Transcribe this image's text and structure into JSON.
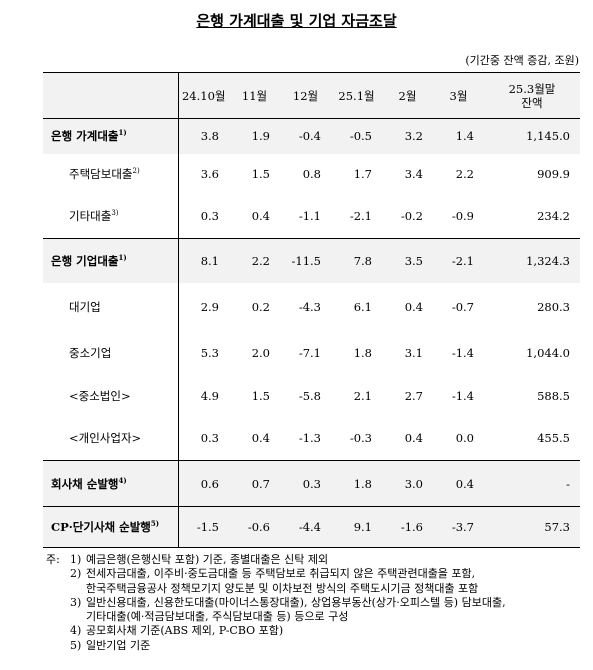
{
  "title": "은행 가계대출 및 기업 자금조달",
  "unit": "(기간중 잔액 증감, 조원)",
  "table": {
    "header": [
      "24.10월",
      "11월",
      "12월",
      "25.1월",
      "2월",
      "3월",
      [
        "25.3월말",
        "잔액"
      ]
    ],
    "groups": [
      {
        "total": {
          "label": "은행 가계대출",
          "note": "1)",
          "values": [
            "3.8",
            "1.9",
            "-0.4",
            "-0.5",
            "3.2",
            "1.4",
            "1,145.0"
          ]
        },
        "items": [
          {
            "label": "주택담보대출",
            "note": "2)",
            "values": [
              "3.6",
              "1.5",
              "0.8",
              "1.7",
              "3.4",
              "2.2",
              "909.9"
            ]
          },
          {
            "label": "기타대출",
            "note": "3)",
            "values": [
              "0.3",
              "0.4",
              "-1.1",
              "-2.1",
              "-0.2",
              "-0.9",
              "234.2"
            ]
          }
        ]
      },
      {
        "total": {
          "label": "은행 기업대출",
          "note": "1)",
          "values": [
            "8.1",
            "2.2",
            "-11.5",
            "7.8",
            "3.5",
            "-2.1",
            "1,324.3"
          ]
        },
        "items": [
          {
            "label": "대기업",
            "values": [
              "2.9",
              "0.2",
              "-4.3",
              "6.1",
              "0.4",
              "-0.7",
              "280.3"
            ]
          },
          {
            "label": "중소기업",
            "values": [
              "5.3",
              "2.0",
              "-7.1",
              "1.8",
              "3.1",
              "-1.4",
              "1,044.0"
            ]
          },
          {
            "label": "<중소법인>",
            "values": [
              "4.9",
              "1.5",
              "-5.8",
              "2.1",
              "2.7",
              "-1.4",
              "588.5"
            ]
          },
          {
            "label": "<개인사업자>",
            "values": [
              "0.3",
              "0.4",
              "-1.3",
              "-0.3",
              "0.4",
              "0.0",
              "455.5"
            ]
          }
        ]
      },
      {
        "total": {
          "label": "회사채 순발행",
          "note": "4)",
          "values": [
            "0.6",
            "0.7",
            "0.3",
            "1.8",
            "3.0",
            "0.4",
            "-"
          ]
        },
        "items": []
      },
      {
        "total": {
          "label": "CP·단기사채 순발행",
          "note": "5)",
          "values": [
            "-1.5",
            "-0.6",
            "-4.4",
            "9.1",
            "-1.6",
            "-3.7",
            "57.3"
          ]
        },
        "items": []
      }
    ]
  },
  "notes": {
    "prefix": "주:",
    "items": [
      {
        "marker": "1)",
        "lines": [
          "예금은행(은행신탁 포함) 기준, 종별대출은 신탁 제외"
        ]
      },
      {
        "marker": "2)",
        "lines": [
          "전세자금대출, 이주비·중도금대출 등 주택담보로 취급되지 않은 주택관련대출을 포함,",
          "한국주택금융공사 정책모기지 양도분 및 이차보전 방식의 주택도시기금 정책대출 포함"
        ]
      },
      {
        "marker": "3)",
        "lines": [
          "일반신용대출, 신용한도대출(마이너스통장대출), 상업용부동산(상가·오피스텔 등) 담보대출,",
          "기타대출(예·적금담보대출, 주식담보대출 등) 등으로 구성"
        ]
      },
      {
        "marker": "4)",
        "lines": [
          "공모회사채 기준(ABS 제외, P-CBO 포함)"
        ]
      },
      {
        "marker": "5)",
        "lines": [
          "일반기업 기준"
        ]
      }
    ]
  }
}
